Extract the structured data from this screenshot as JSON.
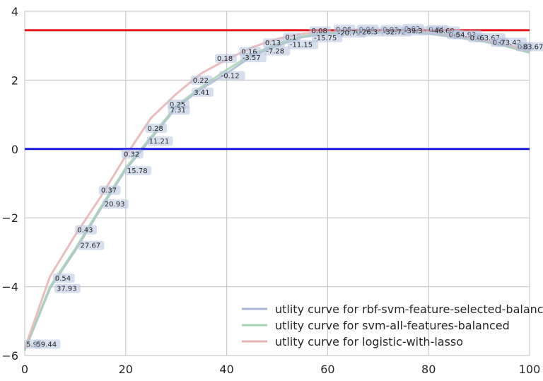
{
  "chart_data": {
    "type": "line",
    "title": "",
    "xlabel": "",
    "ylabel": "",
    "xlim": [
      0,
      100
    ],
    "ylim": [
      -6,
      4
    ],
    "x_ticks": [
      "0",
      "20",
      "40",
      "60",
      "80",
      "100"
    ],
    "y_ticks": [
      "−6",
      "−4",
      "−2",
      "0",
      "2",
      "4"
    ],
    "grid": true,
    "legend_position": "bottom-right",
    "hlines": [
      {
        "y": 3.45,
        "color": "#e8171b"
      },
      {
        "y": 0,
        "color": "#1a1ae0"
      }
    ],
    "series": [
      {
        "name": "utlity curve for rbf-svm-feature-selected-balanced",
        "color": "#a9b8d4",
        "x": [
          0,
          5,
          10,
          15,
          20,
          25,
          30,
          35,
          40,
          45,
          50,
          55,
          60,
          65,
          70,
          75,
          80,
          85,
          90,
          95,
          100
        ],
        "y": [
          -5.85,
          -4.05,
          -2.95,
          -1.75,
          -0.6,
          0.3,
          1.2,
          1.75,
          2.2,
          2.7,
          3.0,
          3.25,
          3.35,
          3.38,
          3.38,
          3.4,
          3.35,
          3.25,
          3.15,
          3.0,
          2.8
        ]
      },
      {
        "name": "utlity curve for svm-all-features-balanced",
        "color": "#a6d2b4",
        "x": [
          0,
          5,
          10,
          15,
          20,
          25,
          30,
          35,
          40,
          45,
          50,
          55,
          60,
          65,
          70,
          75,
          80,
          85,
          90,
          95,
          100
        ],
        "y": [
          -5.85,
          -4.0,
          -2.9,
          -1.7,
          -0.55,
          0.35,
          1.25,
          1.8,
          2.3,
          2.75,
          3.05,
          3.28,
          3.37,
          3.4,
          3.4,
          3.42,
          3.37,
          3.28,
          3.15,
          3.0,
          2.8
        ]
      },
      {
        "name": "utlity curve for logistic-with-lasso",
        "color": "#e6b2b4",
        "x": [
          0,
          5,
          10,
          15,
          20,
          25,
          30,
          35,
          40,
          45,
          50,
          55,
          60,
          65,
          70,
          75,
          80,
          85,
          90,
          95,
          100
        ],
        "y": [
          -5.8,
          -3.7,
          -2.5,
          -1.4,
          -0.2,
          0.9,
          1.6,
          2.2,
          2.6,
          2.95,
          3.2,
          3.35,
          3.42,
          3.45,
          3.45,
          3.45,
          3.4,
          3.3,
          3.18,
          3.05,
          2.85
        ]
      }
    ],
    "annotations": [
      {
        "text": "5.9",
        "x": 0.3,
        "y": -5.72
      },
      {
        "text": "59.44",
        "x": 2.3,
        "y": -5.72
      },
      {
        "text": "0.54",
        "x": 6.0,
        "y": -3.8
      },
      {
        "text": "37.93",
        "x": 6.3,
        "y": -4.1
      },
      {
        "text": "0.43",
        "x": 10.4,
        "y": -2.4
      },
      {
        "text": "27.67",
        "x": 11.0,
        "y": -2.85
      },
      {
        "text": "0.37",
        "x": 15.1,
        "y": -1.25
      },
      {
        "text": "20.93",
        "x": 15.8,
        "y": -1.65
      },
      {
        "text": "0.32",
        "x": 19.6,
        "y": -0.2
      },
      {
        "text": "15.78",
        "x": 20.3,
        "y": -0.68
      },
      {
        "text": "0.28",
        "x": 24.3,
        "y": 0.55
      },
      {
        "text": "11.21",
        "x": 24.6,
        "y": 0.18
      },
      {
        "text": "0.25",
        "x": 28.7,
        "y": 1.25
      },
      {
        "text": "7.31",
        "x": 28.8,
        "y": 1.08
      },
      {
        "text": "0.22",
        "x": 33.3,
        "y": 1.95
      },
      {
        "text": "3.41",
        "x": 33.5,
        "y": 1.6
      },
      {
        "text": "0.18",
        "x": 38.1,
        "y": 2.58
      },
      {
        "text": "-0.12",
        "x": 38.9,
        "y": 2.08
      },
      {
        "text": "0.16",
        "x": 42.9,
        "y": 2.78
      },
      {
        "text": "-3.57",
        "x": 43.1,
        "y": 2.6
      },
      {
        "text": "0.13",
        "x": 47.6,
        "y": 3.03
      },
      {
        "text": "-7.28",
        "x": 47.8,
        "y": 2.8
      },
      {
        "text": "0.1",
        "x": 51.6,
        "y": 3.2
      },
      {
        "text": "-11.15",
        "x": 52.5,
        "y": 2.98
      },
      {
        "text": "0.08",
        "x": 56.8,
        "y": 3.38
      },
      {
        "text": "-15.75",
        "x": 57.3,
        "y": 3.18
      },
      {
        "text": "0.06",
        "x": 61.6,
        "y": 3.43
      },
      {
        "text": "-20.79",
        "x": 62.0,
        "y": 3.32
      },
      {
        "text": "0.04",
        "x": 66.2,
        "y": 3.43
      },
      {
        "text": "-26.3",
        "x": 66.3,
        "y": 3.35
      },
      {
        "text": "0.03",
        "x": 70.9,
        "y": 3.42
      },
      {
        "text": "-32.72",
        "x": 71.0,
        "y": 3.35
      },
      {
        "text": "0.02",
        "x": 75.2,
        "y": 3.45
      },
      {
        "text": "-39.3",
        "x": 75.2,
        "y": 3.38
      },
      {
        "text": "0.01",
        "x": 80.0,
        "y": 3.42
      },
      {
        "text": "-46.69",
        "x": 80.6,
        "y": 3.38
      },
      {
        "text": "0.0",
        "x": 84.0,
        "y": 3.27
      },
      {
        "text": "-54.93",
        "x": 84.9,
        "y": 3.27
      },
      {
        "text": "0.0",
        "x": 88.2,
        "y": 3.18
      },
      {
        "text": "-63.67",
        "x": 89.6,
        "y": 3.18
      },
      {
        "text": "0.0",
        "x": 92.7,
        "y": 3.05
      },
      {
        "text": "-73.42",
        "x": 93.8,
        "y": 3.05
      },
      {
        "text": "0.0",
        "x": 97.6,
        "y": 2.92
      },
      {
        "text": "-83.67",
        "x": 98.2,
        "y": 2.92
      }
    ]
  }
}
